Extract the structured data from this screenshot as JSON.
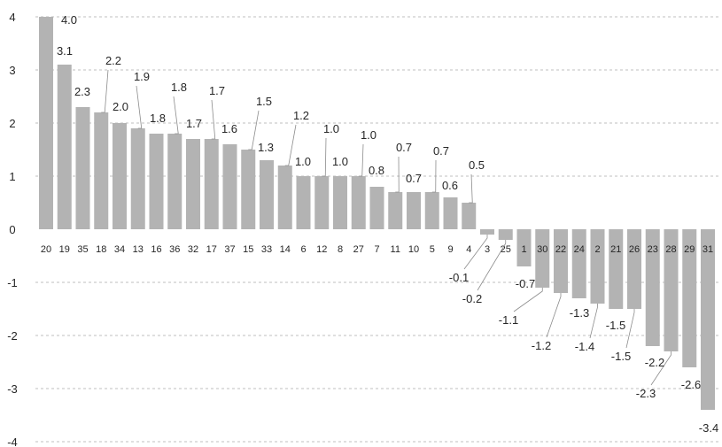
{
  "chart_data": {
    "type": "bar",
    "title": "",
    "xlabel": "",
    "ylabel": "",
    "ylim": [
      -4,
      4
    ],
    "yticks": [
      4,
      3,
      2,
      1,
      0,
      -1,
      -2,
      -3,
      -4
    ],
    "grid": true,
    "legend": "none",
    "colors": {
      "bar": "#b3b3b3",
      "grid": "#bfbfbf",
      "text": "#262626"
    },
    "categories": [
      "20",
      "19",
      "35",
      "18",
      "34",
      "13",
      "16",
      "36",
      "32",
      "17",
      "37",
      "15",
      "33",
      "14",
      "6",
      "12",
      "8",
      "27",
      "7",
      "11",
      "10",
      "5",
      "9",
      "4",
      "3",
      "25",
      "1",
      "30",
      "22",
      "24",
      "2",
      "21",
      "26",
      "23",
      "28",
      "29",
      "31"
    ],
    "values": [
      4.0,
      3.1,
      2.3,
      2.2,
      2.0,
      1.9,
      1.8,
      1.8,
      1.7,
      1.7,
      1.6,
      1.5,
      1.3,
      1.2,
      1.0,
      1.0,
      1.0,
      1.0,
      0.8,
      0.7,
      0.7,
      0.7,
      0.6,
      0.5,
      -0.1,
      -0.2,
      -0.7,
      -1.1,
      -1.2,
      -1.3,
      -1.4,
      -1.5,
      -1.5,
      -2.2,
      -2.3,
      -2.6,
      -3.4
    ],
    "data_labels": [
      "4.0",
      "3.1",
      "2.3",
      "2.2",
      "2.0",
      "1.9",
      "1.8",
      "1.8",
      "1.7",
      "1.7",
      "1.6",
      "1.5",
      "1.3",
      "1.2",
      "1.0",
      "1.0",
      "1.0",
      "1.0",
      "0.8",
      "0.7",
      "0.7",
      "0.7",
      "0.6",
      "0.5",
      "-0.1",
      "-0.2",
      "-0.7",
      "-1.1",
      "-1.2",
      "-1.3",
      "-1.4",
      "-1.5",
      "-1.5",
      "-2.2",
      "-2.3",
      "-2.6",
      "-3.4"
    ]
  }
}
